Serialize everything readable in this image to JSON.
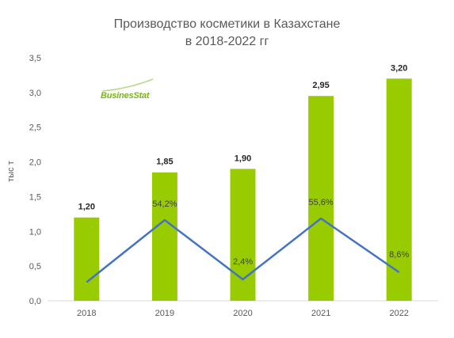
{
  "title_line1": "Производство косметики в Казахстане",
  "title_line2": "в 2018-2022 гг",
  "logo_text": "BusinesStat",
  "colors": {
    "bar": "#99cc00",
    "line": "#4472c4"
  },
  "chart_data": {
    "type": "bar",
    "title": "Производство косметики в Казахстане в 2018-2022 гг",
    "categories": [
      "2018",
      "2019",
      "2020",
      "2021",
      "2022"
    ],
    "ylabel": "тыс т",
    "ylim": [
      0,
      3.5
    ],
    "yticks": [
      "0,0",
      "0,5",
      "1,0",
      "1,5",
      "2,0",
      "2,5",
      "3,0",
      "3,5"
    ],
    "series": [
      {
        "values": [
          1.2,
          1.85,
          1.9,
          2.95,
          3.2
        ],
        "labels": [
          "1,20",
          "1,85",
          "1,90",
          "2,95",
          "3,20"
        ]
      }
    ],
    "growth_line": {
      "values": [
        null,
        54.2,
        2.4,
        55.6,
        8.6
      ],
      "labels": [
        "",
        "54,2%",
        "2,4%",
        "55,6%",
        "8,6%"
      ],
      "secondary_axis_shown": false
    },
    "grid": false,
    "legend": "none"
  }
}
